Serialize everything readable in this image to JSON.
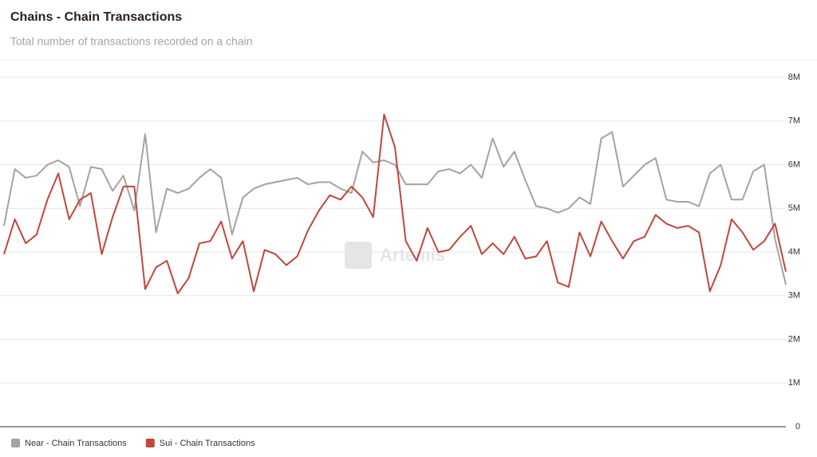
{
  "chart_data": {
    "type": "line",
    "title": "Chains - Chain Transactions",
    "subtitle": "Total number of transactions recorded on a chain",
    "watermark": "Artemis",
    "ylim": [
      0,
      8000000
    ],
    "yticks": [
      0,
      {
        "value": 1000000,
        "label": "1M"
      },
      {
        "value": 2000000,
        "label": "2M"
      },
      {
        "value": 3000000,
        "label": "3M"
      },
      {
        "value": 4000000,
        "label": "4M"
      },
      {
        "value": 5000000,
        "label": "5M"
      },
      {
        "value": 6000000,
        "label": "6M"
      },
      {
        "value": 7000000,
        "label": "7M"
      },
      {
        "value": 8000000,
        "label": "8M"
      }
    ],
    "grid": true,
    "legend": "bottom-left",
    "series": [
      {
        "name": "Near - Chain Transactions",
        "color": "#a5a39e",
        "values": [
          4600000,
          5900000,
          5700000,
          5750000,
          6000000,
          6100000,
          5950000,
          5050000,
          5950000,
          5900000,
          5400000,
          5750000,
          4950000,
          6700000,
          4450000,
          5450000,
          5350000,
          5450000,
          5700000,
          5900000,
          5700000,
          4400000,
          5250000,
          5450000,
          5550000,
          5600000,
          5650000,
          5700000,
          5550000,
          5600000,
          5600000,
          5450000,
          5350000,
          6300000,
          6050000,
          6100000,
          6000000,
          5550000,
          5550000,
          5550000,
          5850000,
          5900000,
          5800000,
          6000000,
          5700000,
          6600000,
          5950000,
          6300000,
          5650000,
          5050000,
          5000000,
          4900000,
          5000000,
          5250000,
          5100000,
          6600000,
          6750000,
          5500000,
          5750000,
          6000000,
          6150000,
          5200000,
          5150000,
          5150000,
          5050000,
          5800000,
          6000000,
          5200000,
          5200000,
          5850000,
          6000000,
          4300000,
          3250000
        ]
      },
      {
        "name": "Sui - Chain Transactions",
        "color": "#c0473b",
        "values": [
          3950000,
          4750000,
          4200000,
          4400000,
          5200000,
          5800000,
          4750000,
          5200000,
          5350000,
          3950000,
          4800000,
          5500000,
          5500000,
          3150000,
          3650000,
          3800000,
          3050000,
          3400000,
          4200000,
          4250000,
          4700000,
          3850000,
          4250000,
          3100000,
          4050000,
          3950000,
          3700000,
          3900000,
          4500000,
          4950000,
          5300000,
          5200000,
          5500000,
          5250000,
          4800000,
          7150000,
          6400000,
          4250000,
          3800000,
          4550000,
          4000000,
          4050000,
          4350000,
          4600000,
          3950000,
          4200000,
          3950000,
          4350000,
          3850000,
          3900000,
          4250000,
          3300000,
          3200000,
          4450000,
          3900000,
          4700000,
          4250000,
          3850000,
          4250000,
          4350000,
          4850000,
          4650000,
          4550000,
          4600000,
          4450000,
          3100000,
          3700000,
          4750000,
          4450000,
          4050000,
          4250000,
          4650000,
          3550000
        ]
      }
    ]
  }
}
